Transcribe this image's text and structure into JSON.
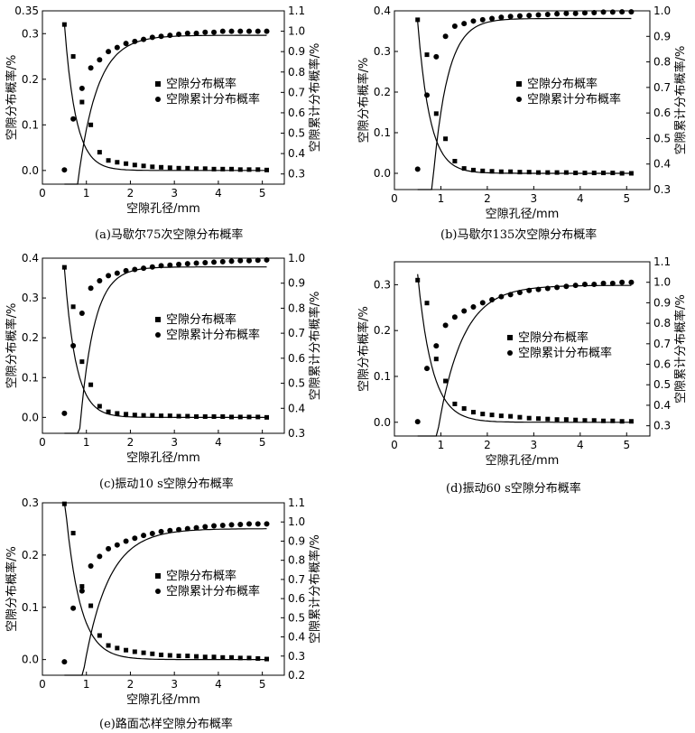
{
  "figure": {
    "panels": [
      {
        "caption": "(a)马歇尔75次空隙分布概率"
      },
      {
        "caption": "(b)马歇尔135次空隙分布概率"
      },
      {
        "caption": "(c)振动10 s空隙分布概率"
      },
      {
        "caption": "(d)振动60 s空隙分布概率"
      },
      {
        "caption": "(e)路面芯样空隙分布概率"
      }
    ]
  },
  "chart_data": [
    {
      "type": "scatter",
      "title": "(a)马歇尔75次空隙分布概率",
      "xlabel": "空隙孔径/mm",
      "ylabel": "空隙分布概率/%",
      "y2label": "空隙累计分布概率/%",
      "xlim": [
        0,
        5.5
      ],
      "ylim": [
        -0.03,
        0.35
      ],
      "y2lim": [
        0.25,
        1.1
      ],
      "xticks": [
        "0",
        "1",
        "2",
        "3",
        "4",
        "5"
      ],
      "yticks": [
        "0.0",
        "0.1",
        "0.2",
        "0.3",
        "0.35"
      ],
      "y2ticks": [
        "0.3",
        "0.4",
        "0.5",
        "0.6",
        "0.7",
        "0.8",
        "0.9",
        "1.0",
        "1.1"
      ],
      "legend_position": "right-center",
      "series": [
        {
          "name": "空隙分布概率",
          "marker": "square",
          "axis": "left",
          "x": [
            0.5,
            0.7,
            0.9,
            1.1,
            1.3,
            1.5,
            1.7,
            1.9,
            2.1,
            2.3,
            2.5,
            2.7,
            2.9,
            3.1,
            3.3,
            3.5,
            3.7,
            3.9,
            4.1,
            4.3,
            4.5,
            4.7,
            4.9,
            5.1
          ],
          "y": [
            0.32,
            0.25,
            0.15,
            0.1,
            0.04,
            0.022,
            0.018,
            0.015,
            0.012,
            0.01,
            0.008,
            0.007,
            0.006,
            0.005,
            0.005,
            0.004,
            0.004,
            0.003,
            0.003,
            0.003,
            0.002,
            0.002,
            0.002,
            0.001
          ]
        },
        {
          "name": "空隙累计分布概率",
          "marker": "circle",
          "axis": "right",
          "x": [
            0.5,
            0.7,
            0.9,
            1.1,
            1.3,
            1.5,
            1.7,
            1.9,
            2.1,
            2.3,
            2.5,
            2.7,
            2.9,
            3.1,
            3.3,
            3.5,
            3.7,
            3.9,
            4.1,
            4.3,
            4.5,
            4.7,
            4.9,
            5.1
          ],
          "y": [
            0.32,
            0.57,
            0.72,
            0.82,
            0.86,
            0.9,
            0.92,
            0.94,
            0.95,
            0.96,
            0.97,
            0.975,
            0.98,
            0.985,
            0.99,
            0.99,
            0.995,
            0.995,
            1.0,
            1.0,
            1.0,
            1.0,
            1.0,
            1.0
          ]
        }
      ],
      "fits": [
        {
          "axis": "left",
          "form": "exp",
          "a": 2.2,
          "k": 3.85,
          "c": 0.0
        },
        {
          "axis": "right",
          "form": "rise",
          "top": 0.98,
          "a": 4.6,
          "k": 2.3
        }
      ]
    },
    {
      "type": "scatter",
      "title": "(b)马歇尔135次空隙分布概率",
      "xlabel": "空隙孔径/mm",
      "ylabel": "空隙分布概率/%",
      "y2label": "空隙累计分布概率/%",
      "xlim": [
        0,
        5.5
      ],
      "ylim": [
        -0.04,
        0.4
      ],
      "y2lim": [
        0.3,
        1.0
      ],
      "xticks": [
        "0",
        "1",
        "2",
        "3",
        "4",
        "5"
      ],
      "yticks": [
        "0.0",
        "0.1",
        "0.2",
        "0.3",
        "0.4"
      ],
      "y2ticks": [
        "0.3",
        "0.4",
        "0.5",
        "0.6",
        "0.7",
        "0.8",
        "0.9",
        "1.0"
      ],
      "legend_position": "right-center",
      "series": [
        {
          "name": "空隙分布概率",
          "marker": "square",
          "axis": "left",
          "x": [
            0.5,
            0.7,
            0.9,
            1.1,
            1.3,
            1.5,
            1.7,
            1.9,
            2.1,
            2.3,
            2.5,
            2.7,
            2.9,
            3.1,
            3.3,
            3.5,
            3.7,
            3.9,
            4.1,
            4.3,
            4.5,
            4.7,
            4.9,
            5.1
          ],
          "y": [
            0.378,
            0.292,
            0.147,
            0.085,
            0.03,
            0.012,
            0.008,
            0.006,
            0.005,
            0.004,
            0.004,
            0.003,
            0.003,
            0.002,
            0.002,
            0.002,
            0.002,
            0.001,
            0.001,
            0.001,
            0.001,
            0.001,
            0.0,
            0.0
          ]
        },
        {
          "name": "空隙累计分布概率",
          "marker": "circle",
          "axis": "right",
          "x": [
            0.5,
            0.7,
            0.9,
            1.1,
            1.3,
            1.5,
            1.7,
            1.9,
            2.1,
            2.3,
            2.5,
            2.7,
            2.9,
            3.1,
            3.3,
            3.5,
            3.7,
            3.9,
            4.1,
            4.3,
            4.5,
            4.7,
            4.9,
            5.1
          ],
          "y": [
            0.38,
            0.67,
            0.82,
            0.9,
            0.94,
            0.95,
            0.96,
            0.965,
            0.97,
            0.975,
            0.978,
            0.98,
            0.982,
            0.984,
            0.986,
            0.988,
            0.99,
            0.99,
            0.992,
            0.993,
            0.995,
            0.995,
            0.996,
            0.996
          ]
        },
        {
          "name": "",
          "marker": "none",
          "axis": "left",
          "x": [],
          "y": []
        }
      ],
      "fits": [
        {
          "axis": "left",
          "form": "exp",
          "a": 2.5,
          "k": 3.8,
          "c": 0.0
        },
        {
          "axis": "right",
          "form": "rise",
          "top": 0.97,
          "a": 9.0,
          "k": 3.2
        }
      ]
    },
    {
      "type": "scatter",
      "title": "(c)振动10 s空隙分布概率",
      "xlabel": "空隙孔径/mm",
      "ylabel": "空隙分布概率/%",
      "y2label": "空隙累计分布概率/%",
      "xlim": [
        0,
        5.5
      ],
      "ylim": [
        -0.04,
        0.4
      ],
      "y2lim": [
        0.3,
        1.0
      ],
      "xticks": [
        "0",
        "1",
        "2",
        "3",
        "4",
        "5"
      ],
      "yticks": [
        "0.0",
        "0.1",
        "0.2",
        "0.3",
        "0.4"
      ],
      "y2ticks": [
        "0.3",
        "0.4",
        "0.5",
        "0.6",
        "0.7",
        "0.8",
        "0.9",
        "1.0"
      ],
      "legend_position": "right-center",
      "series": [
        {
          "name": "空隙分布概率",
          "marker": "square",
          "axis": "left",
          "x": [
            0.5,
            0.7,
            0.9,
            1.1,
            1.3,
            1.5,
            1.7,
            1.9,
            2.1,
            2.3,
            2.5,
            2.7,
            2.9,
            3.1,
            3.3,
            3.5,
            3.7,
            3.9,
            4.1,
            4.3,
            4.5,
            4.7,
            4.9,
            5.1
          ],
          "y": [
            0.377,
            0.278,
            0.14,
            0.082,
            0.028,
            0.014,
            0.01,
            0.008,
            0.006,
            0.005,
            0.005,
            0.004,
            0.004,
            0.003,
            0.003,
            0.002,
            0.002,
            0.002,
            0.002,
            0.001,
            0.001,
            0.001,
            0.001,
            0.0
          ]
        },
        {
          "name": "空隙累计分布概率",
          "marker": "circle",
          "axis": "right",
          "x": [
            0.5,
            0.7,
            0.9,
            1.1,
            1.3,
            1.5,
            1.7,
            1.9,
            2.1,
            2.3,
            2.5,
            2.7,
            2.9,
            3.1,
            3.3,
            3.5,
            3.7,
            3.9,
            4.1,
            4.3,
            4.5,
            4.7,
            4.9,
            5.1
          ],
          "y": [
            0.38,
            0.65,
            0.78,
            0.88,
            0.91,
            0.93,
            0.94,
            0.95,
            0.955,
            0.96,
            0.965,
            0.97,
            0.972,
            0.975,
            0.978,
            0.98,
            0.982,
            0.984,
            0.986,
            0.988,
            0.99,
            0.99,
            0.992,
            0.993
          ]
        }
      ],
      "fits": [
        {
          "axis": "left",
          "form": "exp",
          "a": 2.5,
          "k": 3.8,
          "c": 0.0
        },
        {
          "axis": "right",
          "form": "rise",
          "top": 0.965,
          "a": 9.0,
          "k": 3.1
        }
      ]
    },
    {
      "type": "scatter",
      "title": "(d)振动60 s空隙分布概率",
      "xlabel": "空隙孔径/mm",
      "ylabel": "空隙分布概率/%",
      "y2label": "空隙累计分布概率/%",
      "xlim": [
        0,
        5.5
      ],
      "ylim": [
        -0.03,
        0.35
      ],
      "y2lim": [
        0.25,
        1.1
      ],
      "xticks": [
        "0",
        "1",
        "2",
        "3",
        "4",
        "5"
      ],
      "yticks": [
        "0.0",
        "0.1",
        "0.2",
        "0.3"
      ],
      "y2ticks": [
        "0.3",
        "0.4",
        "0.5",
        "0.6",
        "0.7",
        "0.8",
        "0.9",
        "1.0",
        "1.1"
      ],
      "legend_position": "right-center",
      "series": [
        {
          "name": "空隙分布概率",
          "marker": "square",
          "axis": "left",
          "x": [
            0.5,
            0.7,
            0.9,
            1.1,
            1.3,
            1.5,
            1.7,
            1.9,
            2.1,
            2.3,
            2.5,
            2.7,
            2.9,
            3.1,
            3.3,
            3.5,
            3.7,
            3.9,
            4.1,
            4.3,
            4.5,
            4.7,
            4.9,
            5.1
          ],
          "y": [
            0.31,
            0.26,
            0.138,
            0.09,
            0.04,
            0.03,
            0.022,
            0.018,
            0.016,
            0.014,
            0.013,
            0.011,
            0.009,
            0.008,
            0.007,
            0.006,
            0.006,
            0.005,
            0.004,
            0.004,
            0.003,
            0.003,
            0.002,
            0.002
          ]
        },
        {
          "name": "空隙累计分布概率",
          "marker": "circle",
          "axis": "right",
          "x": [
            0.5,
            0.7,
            0.9,
            1.1,
            1.3,
            1.5,
            1.7,
            1.9,
            2.1,
            2.3,
            2.5,
            2.7,
            2.9,
            3.1,
            3.3,
            3.5,
            3.7,
            3.9,
            4.1,
            4.3,
            4.5,
            4.7,
            4.9,
            5.1
          ],
          "y": [
            0.32,
            0.58,
            0.69,
            0.79,
            0.83,
            0.86,
            0.88,
            0.9,
            0.915,
            0.93,
            0.94,
            0.95,
            0.96,
            0.965,
            0.97,
            0.975,
            0.98,
            0.985,
            0.99,
            0.99,
            0.995,
            0.995,
            1.0,
            1.0
          ]
        }
      ],
      "fits": [
        {
          "axis": "left",
          "form": "exp",
          "a": 1.6,
          "k": 3.2,
          "c": 0.0
        },
        {
          "axis": "right",
          "form": "rise",
          "top": 0.985,
          "a": 4.2,
          "k": 1.9
        }
      ]
    },
    {
      "type": "scatter",
      "title": "(e)路面芯样空隙分布概率",
      "xlabel": "空隙孔径/mm",
      "ylabel": "空隙分布概率/%",
      "y2label": "空隙累计分布概率/%",
      "xlim": [
        0,
        5.5
      ],
      "ylim": [
        -0.03,
        0.3
      ],
      "y2lim": [
        0.2,
        1.1
      ],
      "xticks": [
        "0",
        "1",
        "2",
        "3",
        "4",
        "5"
      ],
      "yticks": [
        "0.0",
        "0.1",
        "0.2",
        "0.3"
      ],
      "y2ticks": [
        "0.2",
        "0.3",
        "0.4",
        "0.5",
        "0.6",
        "0.7",
        "0.8",
        "0.9",
        "1.0",
        "1.1"
      ],
      "legend_position": "right-center",
      "series": [
        {
          "name": "空隙分布概率",
          "marker": "square",
          "axis": "left",
          "x": [
            0.5,
            0.7,
            0.9,
            1.1,
            1.3,
            1.5,
            1.7,
            1.9,
            2.1,
            2.3,
            2.5,
            2.7,
            2.9,
            3.1,
            3.3,
            3.5,
            3.7,
            3.9,
            4.1,
            4.3,
            4.5,
            4.7,
            4.9,
            5.1
          ],
          "y": [
            0.298,
            0.242,
            0.14,
            0.103,
            0.046,
            0.027,
            0.022,
            0.018,
            0.015,
            0.013,
            0.011,
            0.009,
            0.008,
            0.007,
            0.007,
            0.006,
            0.005,
            0.005,
            0.004,
            0.004,
            0.003,
            0.003,
            0.002,
            0.001
          ]
        },
        {
          "name": "空隙累计分布概率",
          "marker": "circle",
          "axis": "right",
          "x": [
            0.5,
            0.7,
            0.9,
            1.1,
            1.3,
            1.5,
            1.7,
            1.9,
            2.1,
            2.3,
            2.5,
            2.7,
            2.9,
            3.1,
            3.3,
            3.5,
            3.7,
            3.9,
            4.1,
            4.3,
            4.5,
            4.7,
            4.9,
            5.1
          ],
          "y": [
            0.27,
            0.55,
            0.64,
            0.77,
            0.82,
            0.86,
            0.88,
            0.9,
            0.915,
            0.93,
            0.94,
            0.95,
            0.955,
            0.96,
            0.965,
            0.97,
            0.975,
            0.98,
            0.982,
            0.985,
            0.987,
            0.99,
            0.99,
            0.99
          ]
        }
      ],
      "fits": [
        {
          "axis": "left",
          "form": "exp",
          "a": 1.4,
          "k": 3.0,
          "c": 0.0
        },
        {
          "axis": "right",
          "form": "rise",
          "top": 0.965,
          "a": 4.0,
          "k": 1.8
        }
      ]
    }
  ]
}
